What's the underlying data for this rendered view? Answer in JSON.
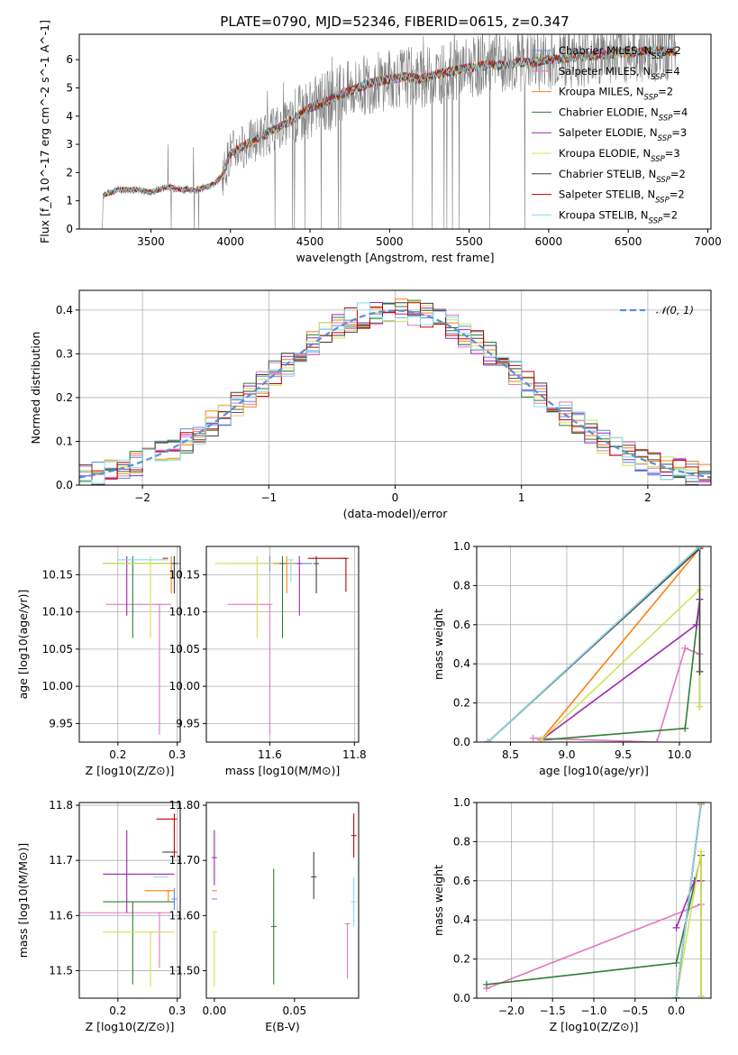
{
  "title": "PLATE=0790, MJD=52346, FIBERID=0615, z=0.347",
  "colors": {
    "Chabrier MILES": "#5a8fd8",
    "Salpeter MILES": "#e377c2",
    "Kroupa MILES": "#ff7f0e",
    "Chabrier ELODIE": "#2e7d32",
    "Salpeter ELODIE": "#9c27b0",
    "Kroupa ELODIE": "#d4e157",
    "Chabrier STELIB": "#404040",
    "Salpeter STELIB": "#c00000",
    "Kroupa STELIB": "#80deea",
    "data": "#808080",
    "normal": "#5a8fd8"
  },
  "chart_data": [
    {
      "type": "line",
      "xlabel": "wavelength [Angstrom, rest frame]",
      "ylabel": "Flux [f_λ 10^-17 erg cm^-2 s^-1 A^-1]",
      "xlim": [
        3050,
        7020
      ],
      "ylim": [
        0,
        6.9
      ],
      "xticks": [
        3500,
        4000,
        4500,
        5000,
        5500,
        6000,
        6500,
        7000
      ],
      "yticks": [
        0,
        1,
        2,
        3,
        4,
        5,
        6
      ],
      "grid": false,
      "legend_position": "top-right",
      "legend": [
        {
          "name": "Chabrier MILES",
          "nssp": "2"
        },
        {
          "name": "Salpeter MILES",
          "nssp": "4"
        },
        {
          "name": "Kroupa MILES",
          "nssp": "2"
        },
        {
          "name": "Chabrier ELODIE",
          "nssp": "4"
        },
        {
          "name": "Salpeter ELODIE",
          "nssp": "3"
        },
        {
          "name": "Kroupa ELODIE",
          "nssp": "3"
        },
        {
          "name": "Chabrier STELIB",
          "nssp": "2"
        },
        {
          "name": "Salpeter STELIB",
          "nssp": "2"
        },
        {
          "name": "Kroupa STELIB",
          "nssp": "2"
        }
      ],
      "continuum": {
        "x": [
          3200,
          3300,
          3400,
          3500,
          3600,
          3700,
          3800,
          3900,
          3950,
          4000,
          4100,
          4200,
          4300,
          4400,
          4500,
          4600,
          4700,
          4800,
          4900,
          5000,
          5100,
          5200,
          5300,
          5400,
          5500,
          5600,
          5700,
          5800,
          5900,
          6000,
          6200,
          6400,
          6600,
          6800
        ],
        "y": [
          1.2,
          1.4,
          1.4,
          1.3,
          1.5,
          1.4,
          1.4,
          1.6,
          1.9,
          2.7,
          3.0,
          3.3,
          3.6,
          3.9,
          4.3,
          4.5,
          4.8,
          5.0,
          5.2,
          5.3,
          5.4,
          5.3,
          5.5,
          5.6,
          5.7,
          5.8,
          5.8,
          5.9,
          5.9,
          6.0,
          6.1,
          6.2,
          6.3,
          6.3
        ]
      }
    },
    {
      "type": "bar",
      "xlabel": "(data-model)/error",
      "ylabel": "Normed distribution",
      "xlim": [
        -2.5,
        2.5
      ],
      "ylim": [
        0,
        0.445
      ],
      "xticks": [
        -2,
        -1,
        0,
        1,
        2
      ],
      "yticks": [
        0.0,
        0.1,
        0.2,
        0.3,
        0.4
      ],
      "grid": true,
      "legend_position": "top-right",
      "legend": [
        "𝒩(0, 1)"
      ],
      "normal": {
        "mean": 0,
        "sd": 1
      }
    },
    {
      "type": "scatter",
      "xlabel": "Z [log10(Z/Z⊙)]",
      "ylabel": "age [log10(age/yr)]",
      "xlim": [
        0.135,
        0.305
      ],
      "ylim": [
        9.925,
        10.188
      ],
      "xticks": [
        0.2,
        0.3
      ],
      "yticks": [
        9.95,
        10.0,
        10.05,
        10.1,
        10.15
      ],
      "grid": true,
      "points": [
        {
          "model": "Chabrier MILES",
          "x": 0.295,
          "y": 10.165,
          "x_err": [
            0.12,
            0.01
          ],
          "y_err": [
            0.01,
            0.01
          ]
        },
        {
          "model": "Salpeter MILES",
          "x": 0.27,
          "y": 10.11,
          "x_err": [
            0.09,
            0.02
          ],
          "y_err": [
            0.175,
            0.0
          ]
        },
        {
          "model": "Kroupa MILES",
          "x": 0.29,
          "y": 10.165,
          "x_err": [
            0.05,
            0.01
          ],
          "y_err": [
            0.04,
            0.01
          ]
        },
        {
          "model": "Chabrier ELODIE",
          "x": 0.225,
          "y": 10.165,
          "x_err": [
            0.05,
            0.07
          ],
          "y_err": [
            0.1,
            0.01
          ]
        },
        {
          "model": "Salpeter ELODIE",
          "x": 0.215,
          "y": 10.165,
          "x_err": [
            0.0,
            0.0
          ],
          "y_err": [
            0.07,
            0.01
          ]
        },
        {
          "model": "Kroupa ELODIE",
          "x": 0.255,
          "y": 10.165,
          "x_err": [
            0.08,
            0.04
          ],
          "y_err": [
            0.1,
            0.01
          ]
        },
        {
          "model": "Chabrier STELIB",
          "x": 0.295,
          "y": 10.165,
          "x_err": [
            0.0,
            0.0
          ],
          "y_err": [
            0.04,
            0.01
          ]
        },
        {
          "model": "Salpeter STELIB",
          "x": 0.28,
          "y": 10.172,
          "x_err": [
            0.0,
            0.0
          ],
          "y_err": [
            0.0,
            0.0
          ]
        },
        {
          "model": "Kroupa STELIB",
          "x": 0.28,
          "y": 10.17,
          "x_err": [
            0.08,
            0.0
          ],
          "y_err": [
            0.0,
            0.0
          ]
        }
      ]
    },
    {
      "type": "scatter",
      "xlabel": "mass [log10(M/M⊙)]",
      "ylabel": "",
      "xlim": [
        11.45,
        11.81
      ],
      "ylim": [
        9.925,
        10.188
      ],
      "xticks": [
        11.6,
        11.8
      ],
      "yticks": [
        9.95,
        10.0,
        10.05,
        10.1,
        10.15
      ],
      "grid": true,
      "points": [
        {
          "model": "Chabrier MILES",
          "x": 11.6,
          "y": 10.165,
          "x_err": [
            0.1,
            0.1
          ],
          "y_err": [
            0.01,
            0.01
          ]
        },
        {
          "model": "Salpeter MILES",
          "x": 11.6,
          "y": 10.11,
          "x_err": [
            0.1,
            0.0
          ],
          "y_err": [
            0.175,
            0.0
          ]
        },
        {
          "model": "Kroupa MILES",
          "x": 11.64,
          "y": 10.165,
          "x_err": [
            0.04,
            0.02
          ],
          "y_err": [
            0.04,
            0.01
          ]
        },
        {
          "model": "Chabrier ELODIE",
          "x": 11.63,
          "y": 10.165,
          "x_err": [
            0.0,
            0.0
          ],
          "y_err": [
            0.1,
            0.01
          ]
        },
        {
          "model": "Salpeter ELODIE",
          "x": 11.67,
          "y": 10.165,
          "x_err": [
            0.0,
            0.0
          ],
          "y_err": [
            0.07,
            0.01
          ]
        },
        {
          "model": "Kroupa ELODIE",
          "x": 11.57,
          "y": 10.165,
          "x_err": [
            0.1,
            0.04
          ],
          "y_err": [
            0.1,
            0.01
          ]
        },
        {
          "model": "Chabrier STELIB",
          "x": 11.71,
          "y": 10.165,
          "x_err": [
            0.0,
            0.0
          ],
          "y_err": [
            0.04,
            0.01
          ]
        },
        {
          "model": "Salpeter STELIB",
          "x": 11.78,
          "y": 10.172,
          "x_err": [
            0.09,
            0.0
          ],
          "y_err": [
            0.045,
            0.0
          ]
        },
        {
          "model": "Kroupa STELIB",
          "x": 11.65,
          "y": 10.17,
          "x_err": [
            0.0,
            0.0
          ],
          "y_err": [
            0.03,
            0.0
          ]
        }
      ]
    },
    {
      "type": "line",
      "xlabel": "age [log10(age/yr)]",
      "ylabel": "mass weight",
      "xlim": [
        8.2,
        10.28
      ],
      "ylim": [
        0,
        1.0
      ],
      "xticks": [
        8.5,
        9.0,
        9.5,
        10.0
      ],
      "yticks": [
        0.0,
        0.2,
        0.4,
        0.6,
        0.8,
        1.0
      ],
      "grid": true,
      "series": [
        {
          "model": "Chabrier MILES",
          "x": [
            8.3,
            10.18
          ],
          "y": [
            0.0,
            1.0
          ]
        },
        {
          "model": "Salpeter MILES",
          "x": [
            8.7,
            9.8,
            10.05,
            10.18
          ],
          "y": [
            0.02,
            0.0,
            0.48,
            0.45
          ]
        },
        {
          "model": "Kroupa MILES",
          "x": [
            8.77,
            10.18
          ],
          "y": [
            0.01,
            0.99
          ]
        },
        {
          "model": "Chabrier ELODIE",
          "x": [
            8.77,
            10.05,
            10.18,
            10.18
          ],
          "y": [
            0.01,
            0.07,
            0.73,
            0.18
          ]
        },
        {
          "model": "Salpeter ELODIE",
          "x": [
            8.77,
            10.15,
            10.18
          ],
          "y": [
            0.01,
            0.6,
            0.73
          ]
        },
        {
          "model": "Kroupa ELODIE",
          "x": [
            8.77,
            10.18,
            10.18
          ],
          "y": [
            0.01,
            0.78,
            0.18
          ]
        },
        {
          "model": "Chabrier STELIB",
          "x": [
            8.3,
            10.18,
            10.18
          ],
          "y": [
            0.0,
            0.99,
            0.36
          ]
        },
        {
          "model": "Salpeter STELIB",
          "x": [
            8.3,
            10.18
          ],
          "y": [
            0.0,
            1.0
          ]
        },
        {
          "model": "Kroupa STELIB",
          "x": [
            8.3,
            10.18
          ],
          "y": [
            0.0,
            1.0
          ]
        }
      ]
    },
    {
      "type": "scatter",
      "xlabel": "Z [log10(Z/Z⊙)]",
      "ylabel": "mass [log10(M/M⊙)]",
      "xlim": [
        0.135,
        0.305
      ],
      "ylim": [
        11.45,
        11.805
      ],
      "xticks": [
        0.2,
        0.3
      ],
      "yticks": [
        11.5,
        11.6,
        11.7,
        11.8
      ],
      "grid": true,
      "points": [
        {
          "model": "Chabrier MILES",
          "x": 0.295,
          "y": 11.63,
          "x_err": [
            0.0,
            0.0
          ],
          "y_err": [
            0.02,
            0.02
          ]
        },
        {
          "model": "Salpeter MILES",
          "x": 0.27,
          "y": 11.605,
          "x_err": [
            0.14,
            0.02
          ],
          "y_err": [
            0.1,
            0.0
          ]
        },
        {
          "model": "Kroupa MILES",
          "x": 0.285,
          "y": 11.645,
          "x_err": [
            0.04,
            0.01
          ],
          "y_err": [
            0.02,
            0.0
          ]
        },
        {
          "model": "Chabrier ELODIE",
          "x": 0.225,
          "y": 11.625,
          "x_err": [
            0.05,
            0.07
          ],
          "y_err": [
            0.15,
            0.0
          ]
        },
        {
          "model": "Salpeter ELODIE",
          "x": 0.215,
          "y": 11.675,
          "x_err": [
            0.04,
            0.08
          ],
          "y_err": [
            0.07,
            0.08
          ]
        },
        {
          "model": "Kroupa ELODIE",
          "x": 0.255,
          "y": 11.57,
          "x_err": [
            0.08,
            0.04
          ],
          "y_err": [
            0.1,
            0.0
          ]
        },
        {
          "model": "Chabrier STELIB",
          "x": 0.295,
          "y": 11.715,
          "x_err": [
            0.02,
            0.0
          ],
          "y_err": [
            0.0,
            0.0
          ]
        },
        {
          "model": "Salpeter STELIB",
          "x": 0.295,
          "y": 11.775,
          "x_err": [
            0.03,
            0.0
          ],
          "y_err": [
            0.07,
            0.01
          ]
        },
        {
          "model": "Kroupa STELIB",
          "x": 0.28,
          "y": 11.67,
          "x_err": [
            0.02,
            0.0
          ],
          "y_err": [
            0.0,
            0.0
          ]
        }
      ]
    },
    {
      "type": "scatter",
      "xlabel": "E(B-V)",
      "ylabel": "",
      "xlim": [
        -0.005,
        0.09
      ],
      "ylim": [
        11.45,
        11.805
      ],
      "xticks": [
        0.0,
        0.05
      ],
      "yticks": [
        11.5,
        11.6,
        11.7,
        11.8
      ],
      "grid": false,
      "points": [
        {
          "model": "Chabrier MILES",
          "x": 0.0,
          "y": 11.63,
          "x_err": [
            0.0,
            0.0
          ],
          "y_err": [
            0.0,
            0.0
          ]
        },
        {
          "model": "Salpeter MILES",
          "x": 0.083,
          "y": 11.585,
          "x_err": [
            0.0,
            0.0
          ],
          "y_err": [
            0.1,
            0.0
          ]
        },
        {
          "model": "Kroupa MILES",
          "x": 0.0,
          "y": 11.645,
          "x_err": [
            0.0,
            0.0
          ],
          "y_err": [
            0.0,
            0.0
          ]
        },
        {
          "model": "Chabrier ELODIE",
          "x": 0.037,
          "y": 11.58,
          "x_err": [
            0.0,
            0.0
          ],
          "y_err": [
            0.105,
            0.105
          ]
        },
        {
          "model": "Salpeter ELODIE",
          "x": 0.0,
          "y": 11.705,
          "x_err": [
            0.0,
            0.0
          ],
          "y_err": [
            0.05,
            0.05
          ]
        },
        {
          "model": "Kroupa ELODIE",
          "x": 0.0,
          "y": 11.57,
          "x_err": [
            0.0,
            0.0
          ],
          "y_err": [
            0.1,
            0.0
          ]
        },
        {
          "model": "Chabrier STELIB",
          "x": 0.062,
          "y": 11.67,
          "x_err": [
            0.0,
            0.0
          ],
          "y_err": [
            0.04,
            0.045
          ]
        },
        {
          "model": "Salpeter STELIB",
          "x": 0.087,
          "y": 11.745,
          "x_err": [
            0.0,
            0.0
          ],
          "y_err": [
            0.04,
            0.04
          ]
        },
        {
          "model": "Kroupa STELIB",
          "x": 0.087,
          "y": 11.625,
          "x_err": [
            0.0,
            0.0
          ],
          "y_err": [
            0.045,
            0.045
          ]
        }
      ]
    },
    {
      "type": "line",
      "xlabel": "Z [log10(Z/Z⊙)]",
      "ylabel": "mass weight",
      "xlim": [
        -2.42,
        0.42
      ],
      "ylim": [
        0,
        1.0
      ],
      "xticks": [
        -2.0,
        -1.5,
        -1.0,
        -0.5,
        0.0
      ],
      "yticks": [
        0.0,
        0.2,
        0.4,
        0.6,
        0.8,
        1.0
      ],
      "grid": true,
      "series": [
        {
          "model": "Chabrier MILES",
          "x": [
            0.0,
            0.3
          ],
          "y": [
            0.0,
            1.0
          ]
        },
        {
          "model": "Salpeter MILES",
          "x": [
            -2.3,
            0.3
          ],
          "y": [
            0.05,
            0.48
          ]
        },
        {
          "model": "Kroupa MILES",
          "x": [
            0.0,
            0.3
          ],
          "y": [
            0.0,
            0.99
          ]
        },
        {
          "model": "Chabrier ELODIE",
          "x": [
            -2.3,
            0.0,
            0.3,
            0.3
          ],
          "y": [
            0.07,
            0.18,
            0.73,
            0.01
          ]
        },
        {
          "model": "Salpeter ELODIE",
          "x": [
            0.0,
            0.22,
            0.3
          ],
          "y": [
            0.36,
            0.6,
            0.6
          ]
        },
        {
          "model": "Kroupa ELODIE",
          "x": [
            0.0,
            0.3,
            0.3
          ],
          "y": [
            0.0,
            0.75,
            0.01
          ]
        },
        {
          "model": "Chabrier STELIB",
          "x": [
            0.0,
            0.3
          ],
          "y": [
            0.0,
            1.0
          ]
        },
        {
          "model": "Salpeter STELIB",
          "x": [
            0.0,
            0.3
          ],
          "y": [
            0.0,
            1.0
          ]
        },
        {
          "model": "Kroupa STELIB",
          "x": [
            0.0,
            0.3
          ],
          "y": [
            0.0,
            1.0
          ]
        }
      ]
    }
  ]
}
